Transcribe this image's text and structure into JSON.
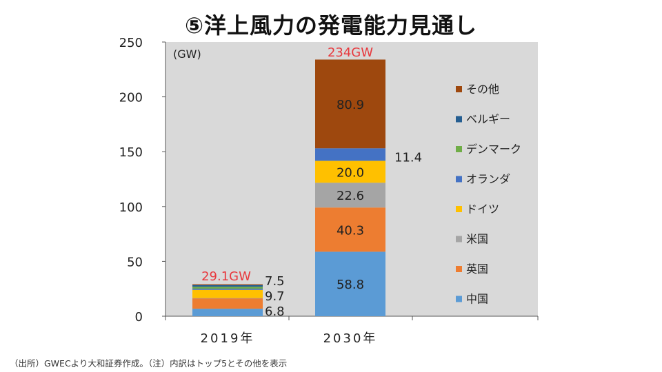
{
  "title": "⑤洋上風力の発電能力見通し",
  "note": "（出所）GWECより大和証券作成。（注）内訳はトップ5とその他を表示",
  "chart_data": {
    "type": "stacked-bar",
    "unit_label": "(GW)",
    "ylim": [
      0,
      250
    ],
    "yticks": [
      0,
      50,
      100,
      150,
      200,
      250
    ],
    "categories": [
      "2019年",
      "2030年"
    ],
    "totals": [
      "29.1GW",
      "234GW"
    ],
    "series": [
      {
        "name": "中国",
        "values": [
          6.8,
          58.8
        ],
        "color": "#5b9bd5",
        "labels": [
          "6.8",
          "58.8"
        ]
      },
      {
        "name": "英国",
        "values": [
          9.7,
          40.3
        ],
        "color": "#ed7d31",
        "labels": [
          "9.7",
          "40.3"
        ]
      },
      {
        "name": "米国",
        "values": [
          0.03,
          22.6
        ],
        "color": "#a5a5a5",
        "labels": [
          "",
          "22.6"
        ]
      },
      {
        "name": "ドイツ",
        "values": [
          7.5,
          20.0
        ],
        "color": "#ffc000",
        "labels": [
          "7.5",
          "20.0"
        ]
      },
      {
        "name": "オランダ",
        "values": [
          1.1,
          11.4
        ],
        "color": "#4472c4",
        "labels": [
          "",
          "11.4"
        ]
      },
      {
        "name": "デンマーク",
        "values": [
          1.7,
          0
        ],
        "color": "#70ad47",
        "labels": [
          "",
          ""
        ]
      },
      {
        "name": "ベルギー",
        "values": [
          1.6,
          0
        ],
        "color": "#255e91",
        "labels": [
          "",
          ""
        ]
      },
      {
        "name": "その他",
        "values": [
          0.7,
          80.9
        ],
        "color": "#9e480e",
        "labels": [
          "",
          "80.9"
        ]
      }
    ],
    "legend": {
      "position": "right",
      "order": [
        "その他",
        "ベルギー",
        "デンマーク",
        "オランダ",
        "ドイツ",
        "米国",
        "英国",
        "中国"
      ]
    },
    "total_label_color": "#e8383d",
    "plot_background": "#d9d9d9"
  }
}
